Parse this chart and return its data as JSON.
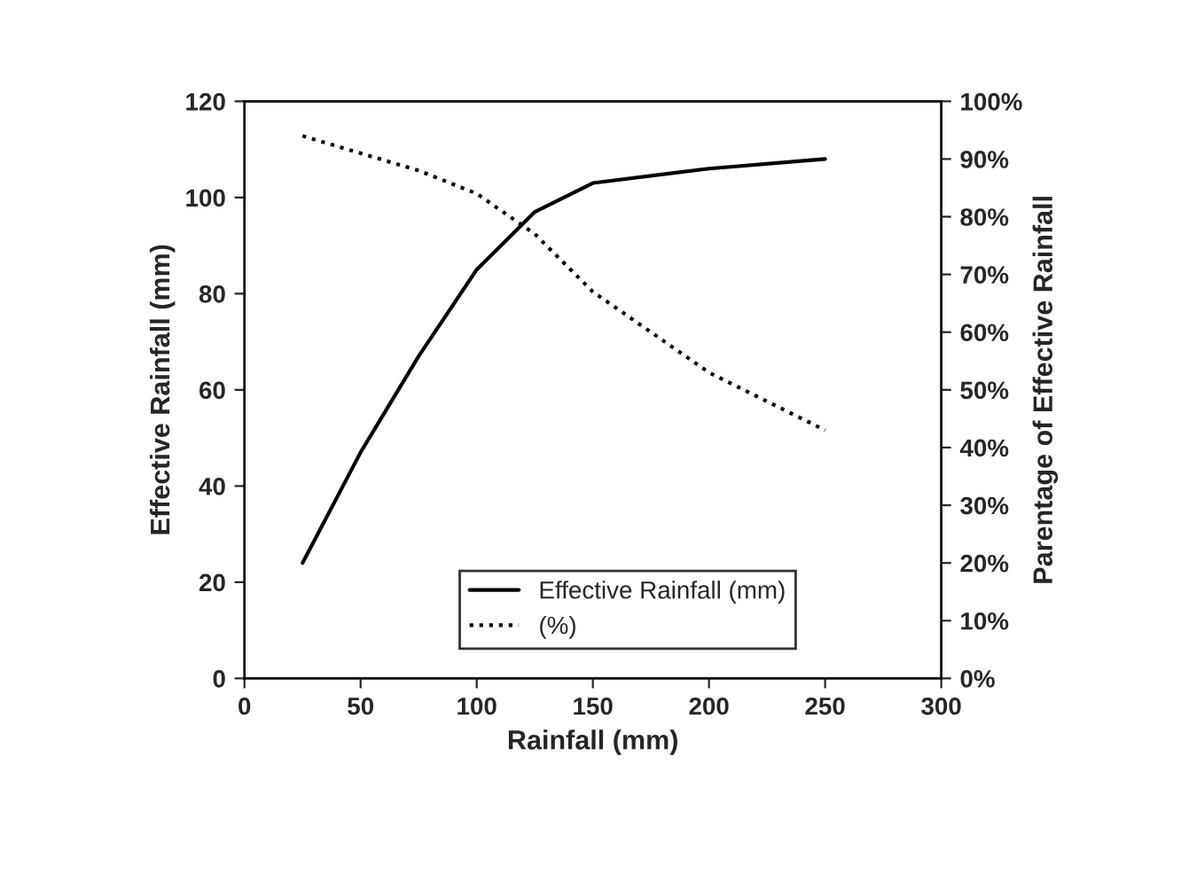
{
  "chart_data": {
    "type": "line",
    "x": [
      25,
      50,
      75,
      100,
      125,
      150,
      200,
      250
    ],
    "series": [
      {
        "name": "Effective Rainfall (mm)",
        "color": "#000000",
        "line_style": "solid",
        "values": [
          24,
          47,
          67,
          85,
          97,
          103,
          106,
          108
        ]
      },
      {
        "name": "(%)",
        "color": "#000000",
        "line_style": "dotted",
        "axis": "y2",
        "values": [
          94,
          91,
          88,
          84,
          77,
          67,
          53,
          43
        ]
      }
    ],
    "xlabel": "Rainfall (mm)",
    "ylabel": "Effective Rainfall (mm)",
    "y2label": "Parentage of Effective Rainfall",
    "xlim": [
      0,
      300
    ],
    "xticks": [
      0,
      50,
      100,
      150,
      200,
      250,
      300
    ],
    "ylim": [
      0,
      120
    ],
    "yticks": [
      0,
      20,
      40,
      60,
      80,
      100,
      120
    ],
    "y2lim": [
      0,
      100
    ],
    "y2ticks": [
      {
        "value": 0,
        "label": "0%"
      },
      {
        "value": 10,
        "label": "10%"
      },
      {
        "value": 20,
        "label": "20%"
      },
      {
        "value": 30,
        "label": "30%"
      },
      {
        "value": 40,
        "label": "40%"
      },
      {
        "value": 50,
        "label": "50%"
      },
      {
        "value": 60,
        "label": "60%"
      },
      {
        "value": 70,
        "label": "70%"
      },
      {
        "value": 80,
        "label": "80%"
      },
      {
        "value": 90,
        "label": "90%"
      },
      {
        "value": 100,
        "label": "100%"
      }
    ],
    "grid": false,
    "marker": "none",
    "legend": "bottom"
  }
}
